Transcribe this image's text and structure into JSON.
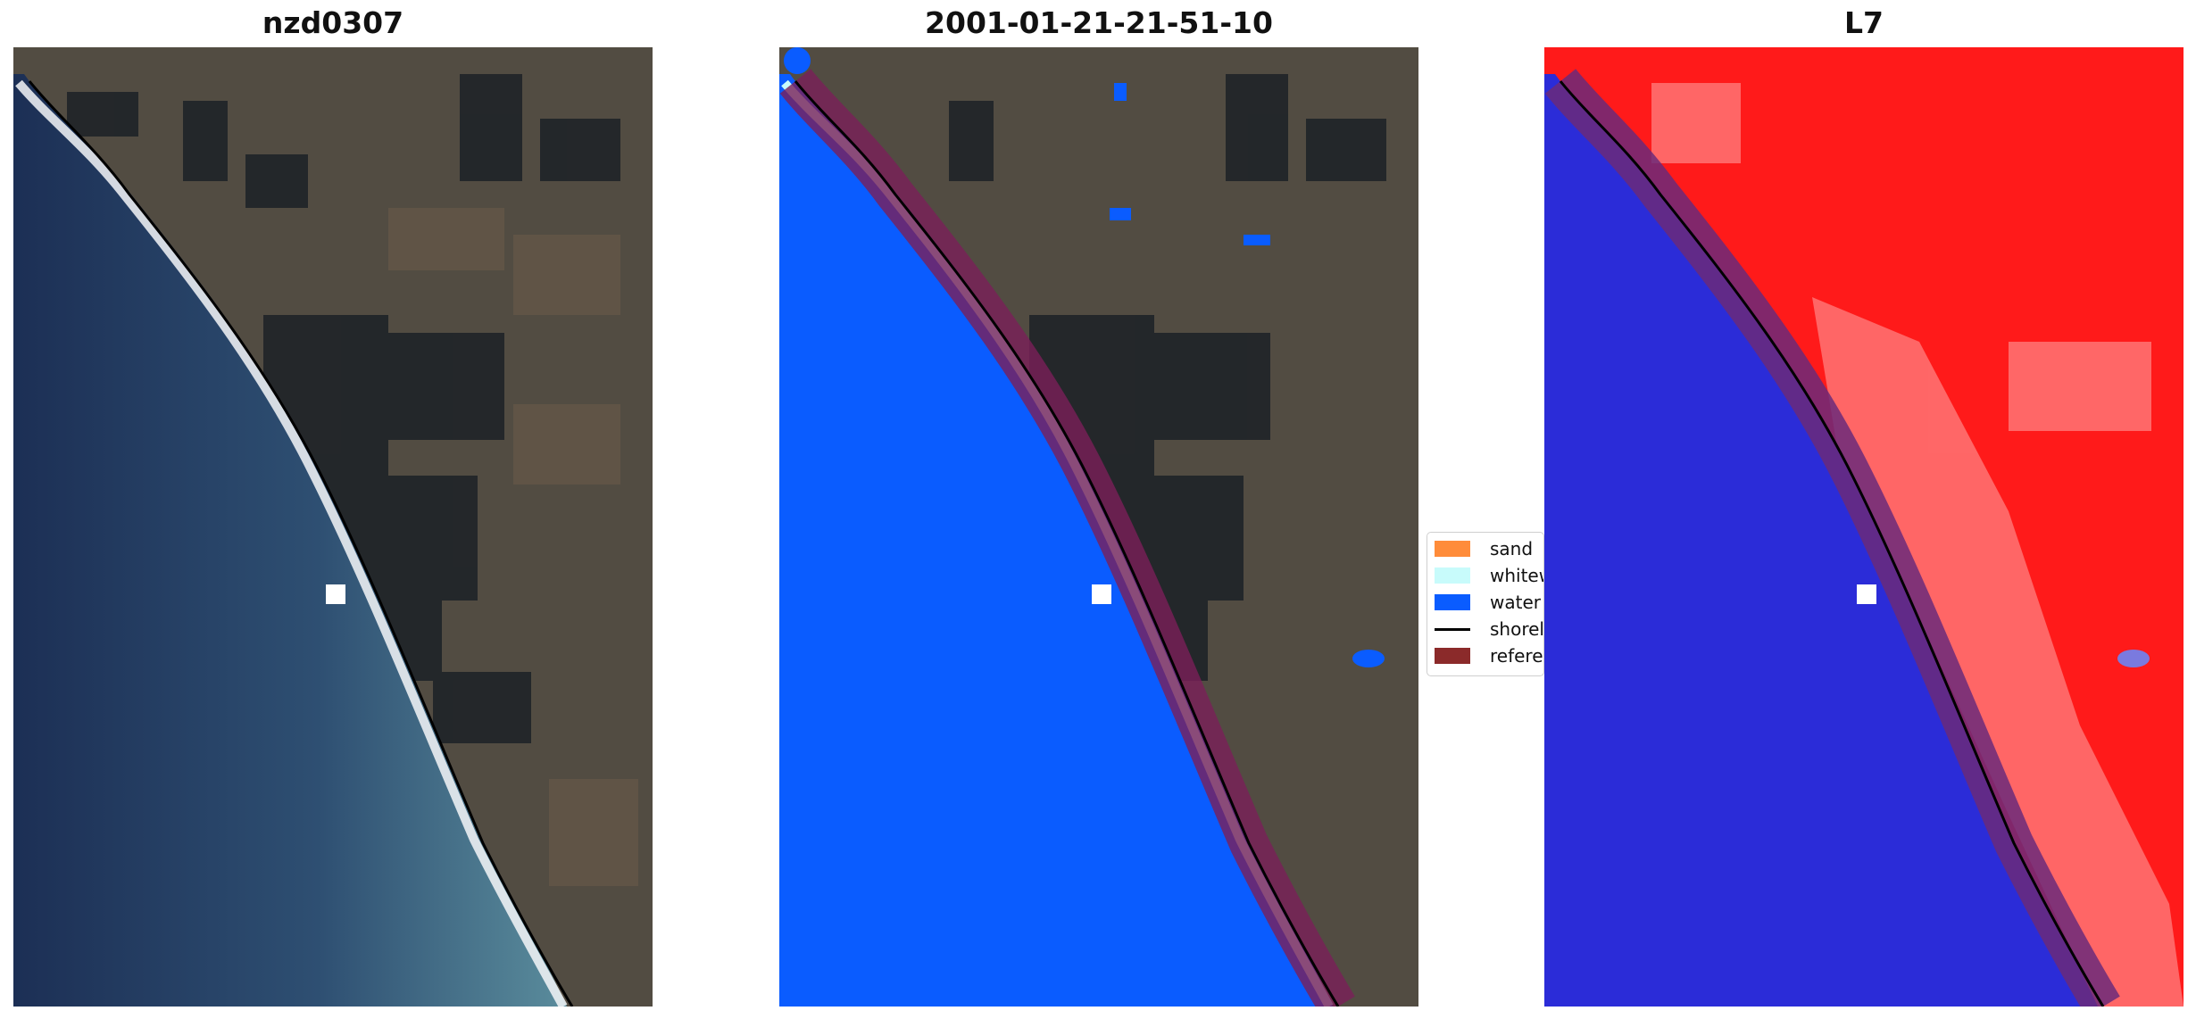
{
  "panels": [
    {
      "title": "nzd0307",
      "colors": {
        "ocean_deep": "#1c2f55",
        "ocean_near": "#4f7e92",
        "surf": "#f4f6f8",
        "land": "#524c42",
        "forest": "#1f2428"
      }
    },
    {
      "title": "2001-01-21-21-51-10",
      "colors": {
        "water": "#0a5cff",
        "whitewater": "#c8fbfb",
        "reference": "#7a1f59",
        "land": "#524c42"
      }
    },
    {
      "title": "L7",
      "colors": {
        "water": "#2b2cd8",
        "land": "#ff1a1a",
        "reference": "#6b2a7a"
      }
    }
  ],
  "legend": {
    "items": [
      {
        "label": "sand",
        "color": "#ff8c3a",
        "icon": "swatch"
      },
      {
        "label": "whitew",
        "color": "#c8fbfb",
        "icon": "swatch"
      },
      {
        "label": "water",
        "color": "#0a5cff",
        "icon": "swatch"
      },
      {
        "label": "shorel",
        "color": "#000000",
        "icon": "line"
      },
      {
        "label": "referen",
        "color": "#8b2a2a",
        "icon": "swatch"
      }
    ]
  }
}
